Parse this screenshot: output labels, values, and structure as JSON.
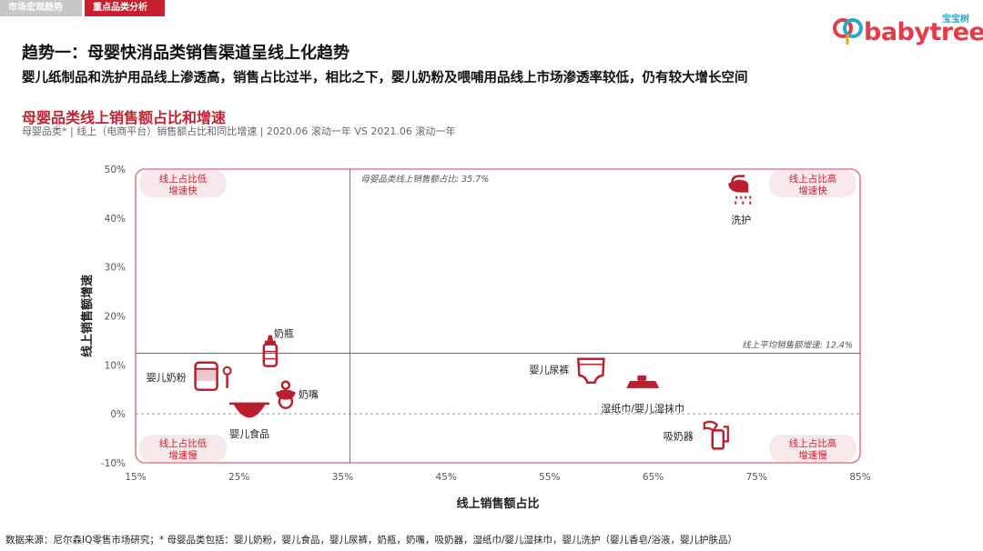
{
  "tabs": [
    {
      "label": "市场宏观趋势",
      "active": false
    },
    {
      "label": "重点品类分析",
      "active": true
    }
  ],
  "logo": {
    "text_main": "babytree",
    "text_sub": "宝宝树"
  },
  "headline": "趋势一：母婴快消品类销售渠道呈线上化趋势",
  "subline": "婴儿纸制品和洗护用品线上渗透高，销售占比过半，相比之下，婴儿奶粉及喂哺用品线上市场渗透率较低，仍有较大增长空间",
  "chart_title": "母婴品类线上销售额占比和增速",
  "chart_subtitle": "母婴品类* | 线上（电商平台）销售额占比和同比增速 | 2020.06 滚动一年 VS 2021.06 滚动一年",
  "footer_note": "数据来源：尼尔森IQ零售市场研究；* 母婴品类包括：婴儿奶粉，婴儿食品，婴儿尿裤，奶瓶，奶嘴，吸奶器，湿纸巾/婴儿湿抹巾，婴儿洗护（婴儿香皂/浴液，婴儿护肤品）",
  "colors": {
    "accent": "#c8202f",
    "quadrant_border": "#e87b8a",
    "pill_bg": "#f7e9eb",
    "icon": "#b91f2e"
  },
  "chart_data": {
    "type": "scatter",
    "xlabel": "线上销售额占比",
    "ylabel": "线上销售额增速",
    "xlim": [
      15,
      85
    ],
    "ylim": [
      -10,
      50
    ],
    "x_ticks": [
      15,
      25,
      35,
      45,
      55,
      65,
      75,
      85
    ],
    "y_ticks": [
      -10,
      0,
      10,
      20,
      30,
      40,
      50
    ],
    "x_tick_labels": [
      "15%",
      "25%",
      "35%",
      "45%",
      "55%",
      "65%",
      "75%",
      "85%"
    ],
    "y_tick_labels": [
      "-10%",
      "0%",
      "10%",
      "20%",
      "30%",
      "40%",
      "50%"
    ],
    "reference_lines": [
      {
        "axis": "x",
        "value": 35.7,
        "label": "母婴品类线上销售额占比: 35.7%"
      },
      {
        "axis": "y",
        "value": 12.4,
        "label": "线上平均销售额增速: 12.4%"
      }
    ],
    "quadrant_labels": [
      {
        "position": "top-left",
        "line1": "线上占比低",
        "line2": "增速快"
      },
      {
        "position": "top-right",
        "line1": "线上占比高",
        "line2": "增速快"
      },
      {
        "position": "bottom-left",
        "line1": "线上占比低",
        "line2": "增速慢"
      },
      {
        "position": "bottom-right",
        "line1": "线上占比高",
        "line2": "增速慢"
      }
    ],
    "points": [
      {
        "name": "婴儿奶粉",
        "x": 22,
        "y": 7.5,
        "icon": "formula-can-icon",
        "label_side": "left"
      },
      {
        "name": "奶瓶",
        "x": 28,
        "y": 12,
        "icon": "baby-bottle-icon",
        "label_side": "top-right"
      },
      {
        "name": "奶嘴",
        "x": 29.5,
        "y": 4,
        "icon": "pacifier-icon",
        "label_side": "right"
      },
      {
        "name": "婴儿食品",
        "x": 26,
        "y": 0.8,
        "icon": "food-bowl-icon",
        "label_side": "bottom"
      },
      {
        "name": "婴儿尿裤",
        "x": 59,
        "y": 9,
        "icon": "diaper-icon",
        "label_side": "left"
      },
      {
        "name": "湿纸巾/婴儿湿抹巾",
        "x": 64,
        "y": 6,
        "icon": "wipes-icon",
        "label_side": "bottom"
      },
      {
        "name": "洗护",
        "x": 73.5,
        "y": 44.5,
        "icon": "shower-icon",
        "label_side": "bottom"
      },
      {
        "name": "吸奶器",
        "x": 71,
        "y": -4.5,
        "icon": "breast-pump-icon",
        "label_side": "left"
      }
    ]
  }
}
